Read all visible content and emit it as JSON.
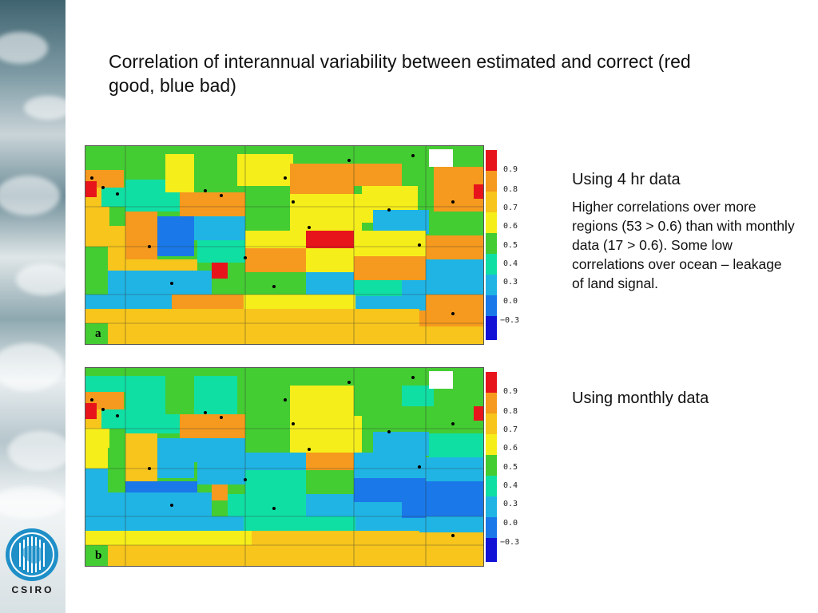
{
  "slide": {
    "title": "Correlation of interannual variability between estimated and correct (red good, blue bad)"
  },
  "panels": [
    {
      "id": "a",
      "label": "a"
    },
    {
      "id": "b",
      "label": "b"
    }
  ],
  "legend": {
    "levels": [
      "0.9",
      "0.8",
      "0.7",
      "0.6",
      "0.5",
      "0.4",
      "0.3",
      "0.0",
      "−0.3"
    ],
    "colors": [
      "#e8141b",
      "#f59a1e",
      "#f7c51c",
      "#f6ee1a",
      "#44cc33",
      "#10dfa4",
      "#20b4e4",
      "#1a78e9",
      "#1212d6"
    ]
  },
  "panel_a_text": {
    "heading": "Using 4 hr data",
    "body": "Higher correlations over more regions (53 > 0.6) than with monthly data (17 > 0.6).  Some low correlations over ocean – leakage of land signal."
  },
  "panel_b_text": {
    "heading": "Using monthly data"
  },
  "logo": {
    "text": "CSIRO"
  }
}
